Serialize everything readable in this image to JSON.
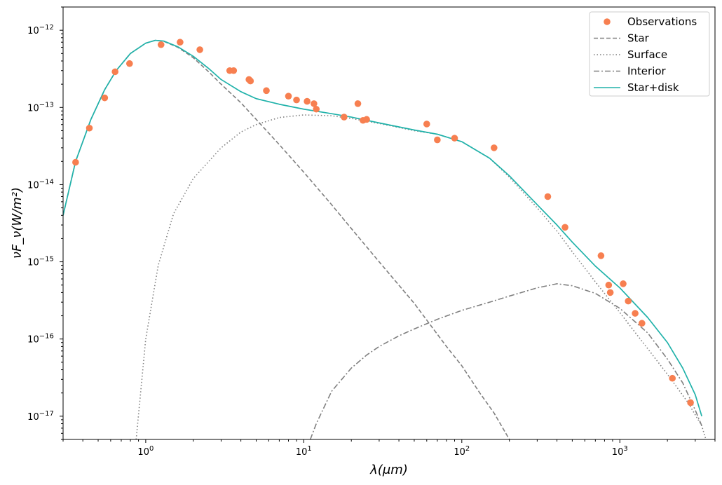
{
  "chart_data": {
    "type": "scatter",
    "title": "",
    "xlabel": "λ(μm)",
    "ylabel": "νF_ν(W/m²)",
    "xscale": "log",
    "yscale": "log",
    "xlim": [
      0.3,
      4000
    ],
    "ylim": [
      5e-18,
      2e-12
    ],
    "legend_position": "top-right",
    "x_ticks": [
      {
        "value": 1,
        "base": "10",
        "exp": "0"
      },
      {
        "value": 10,
        "base": "10",
        "exp": "1"
      },
      {
        "value": 100,
        "base": "10",
        "exp": "2"
      },
      {
        "value": 1000,
        "base": "10",
        "exp": "3"
      }
    ],
    "y_ticks": [
      {
        "value": 1e-17,
        "base": "10",
        "exp": "−17"
      },
      {
        "value": 1e-16,
        "base": "10",
        "exp": "−16"
      },
      {
        "value": 1e-15,
        "base": "10",
        "exp": "−15"
      },
      {
        "value": 1e-14,
        "base": "10",
        "exp": "−14"
      },
      {
        "value": 1e-13,
        "base": "10",
        "exp": "−13"
      },
      {
        "value": 1e-12,
        "base": "10",
        "exp": "−12"
      }
    ],
    "series": [
      {
        "name": "Observations",
        "kind": "scatter",
        "color": "#f77f50",
        "points": [
          [
            0.36,
            1.95e-14
          ],
          [
            0.44,
            5.4e-14
          ],
          [
            0.55,
            1.33e-13
          ],
          [
            0.64,
            2.9e-13
          ],
          [
            0.79,
            3.7e-13
          ],
          [
            1.25,
            6.5e-13
          ],
          [
            1.65,
            7e-13
          ],
          [
            2.2,
            5.6e-13
          ],
          [
            3.4,
            3e-13
          ],
          [
            3.6,
            3e-13
          ],
          [
            4.5,
            2.3e-13
          ],
          [
            4.6,
            2.2e-13
          ],
          [
            5.8,
            1.65e-13
          ],
          [
            8.0,
            1.4e-13
          ],
          [
            9.0,
            1.25e-13
          ],
          [
            10.5,
            1.2e-13
          ],
          [
            11.6,
            1.12e-13
          ],
          [
            12.0,
            9.5e-14
          ],
          [
            18,
            7.5e-14
          ],
          [
            22,
            1.12e-13
          ],
          [
            23.7,
            6.8e-14
          ],
          [
            25,
            7e-14
          ],
          [
            60,
            6.1e-14
          ],
          [
            70,
            3.8e-14
          ],
          [
            90,
            4e-14
          ],
          [
            160,
            3e-14
          ],
          [
            350,
            7e-15
          ],
          [
            450,
            2.8e-15
          ],
          [
            760,
            1.2e-15
          ],
          [
            850,
            5e-16
          ],
          [
            870,
            4e-16
          ],
          [
            1050,
            5.2e-16
          ],
          [
            1130,
            3.1e-16
          ],
          [
            1250,
            2.15e-16
          ],
          [
            1380,
            1.6e-16
          ],
          [
            2150,
            3.1e-17
          ],
          [
            2800,
            1.5e-17
          ]
        ]
      },
      {
        "name": "Star",
        "kind": "line",
        "dash": "dashed",
        "color": "#808080",
        "points": [
          [
            0.3,
            4e-15
          ],
          [
            0.36,
            2e-14
          ],
          [
            0.45,
            7e-14
          ],
          [
            0.55,
            1.7e-13
          ],
          [
            0.65,
            3e-13
          ],
          [
            0.8,
            5e-13
          ],
          [
            1.0,
            6.8e-13
          ],
          [
            1.15,
            7.4e-13
          ],
          [
            1.3,
            7.2e-13
          ],
          [
            1.6,
            6e-13
          ],
          [
            2.0,
            4.4e-13
          ],
          [
            2.5,
            2.9e-13
          ],
          [
            3.0,
            2e-13
          ],
          [
            4.0,
            1.15e-13
          ],
          [
            5.0,
            7e-14
          ],
          [
            7.0,
            3.3e-14
          ],
          [
            10,
            1.45e-14
          ],
          [
            15,
            5.5e-15
          ],
          [
            20,
            2.7e-15
          ],
          [
            30,
            1e-15
          ],
          [
            50,
            2.9e-16
          ],
          [
            80,
            8e-17
          ],
          [
            100,
            4.5e-17
          ],
          [
            130,
            2e-17
          ],
          [
            160,
            1.1e-17
          ],
          [
            200,
            5e-18
          ]
        ]
      },
      {
        "name": "Surface",
        "kind": "line",
        "dash": "dotted",
        "color": "#808080",
        "points": [
          [
            0.87,
            5e-18
          ],
          [
            1.0,
            1e-16
          ],
          [
            1.2,
            9e-16
          ],
          [
            1.5,
            4.2e-15
          ],
          [
            2.0,
            1.2e-14
          ],
          [
            3.0,
            3e-14
          ],
          [
            4.0,
            4.8e-14
          ],
          [
            5.0,
            6e-14
          ],
          [
            7.0,
            7.4e-14
          ],
          [
            10,
            8e-14
          ],
          [
            15,
            7.8e-14
          ],
          [
            20,
            7.2e-14
          ],
          [
            30,
            6.2e-14
          ],
          [
            50,
            5e-14
          ],
          [
            70,
            4.5e-14
          ],
          [
            100,
            3.6e-14
          ],
          [
            150,
            2.2e-14
          ],
          [
            200,
            1.25e-14
          ],
          [
            300,
            5e-15
          ],
          [
            400,
            2.5e-15
          ],
          [
            500,
            1.35e-15
          ],
          [
            700,
            5.5e-16
          ],
          [
            1000,
            2.2e-16
          ],
          [
            1500,
            7.5e-17
          ],
          [
            2000,
            3.5e-17
          ],
          [
            2700,
            1.5e-17
          ],
          [
            3300,
            7.5e-18
          ],
          [
            3500,
            5e-18
          ]
        ]
      },
      {
        "name": "Interior",
        "kind": "line",
        "dash": "dashdot",
        "color": "#808080",
        "points": [
          [
            11,
            5e-18
          ],
          [
            12,
            8e-18
          ],
          [
            15,
            2.1e-17
          ],
          [
            20,
            4.2e-17
          ],
          [
            25,
            6.2e-17
          ],
          [
            30,
            8e-17
          ],
          [
            40,
            1.1e-16
          ],
          [
            50,
            1.35e-16
          ],
          [
            70,
            1.8e-16
          ],
          [
            100,
            2.35e-16
          ],
          [
            150,
            3e-16
          ],
          [
            200,
            3.6e-16
          ],
          [
            300,
            4.6e-16
          ],
          [
            400,
            5.2e-16
          ],
          [
            500,
            4.9e-16
          ],
          [
            700,
            3.9e-16
          ],
          [
            1000,
            2.5e-16
          ],
          [
            1500,
            1.2e-16
          ],
          [
            2000,
            5.5e-17
          ],
          [
            2500,
            2.7e-17
          ],
          [
            3000,
            1.2e-17
          ],
          [
            3300,
            7.5e-18
          ]
        ]
      },
      {
        "name": "Star+disk",
        "kind": "line",
        "dash": "solid",
        "color": "#20b2aa",
        "points": [
          [
            0.3,
            4e-15
          ],
          [
            0.36,
            2e-14
          ],
          [
            0.45,
            7e-14
          ],
          [
            0.55,
            1.7e-13
          ],
          [
            0.65,
            3e-13
          ],
          [
            0.8,
            5e-13
          ],
          [
            1.0,
            6.8e-13
          ],
          [
            1.15,
            7.4e-13
          ],
          [
            1.3,
            7.25e-13
          ],
          [
            1.6,
            6.1e-13
          ],
          [
            2.0,
            4.6e-13
          ],
          [
            2.5,
            3.2e-13
          ],
          [
            3.0,
            2.3e-13
          ],
          [
            4.0,
            1.6e-13
          ],
          [
            5.0,
            1.3e-13
          ],
          [
            7.0,
            1.1e-13
          ],
          [
            10,
            9.5e-14
          ],
          [
            15,
            8.3e-14
          ],
          [
            20,
            7.5e-14
          ],
          [
            30,
            6.3e-14
          ],
          [
            50,
            5.1e-14
          ],
          [
            70,
            4.5e-14
          ],
          [
            100,
            3.6e-14
          ],
          [
            150,
            2.2e-14
          ],
          [
            200,
            1.3e-14
          ],
          [
            300,
            5.5e-15
          ],
          [
            400,
            3e-15
          ],
          [
            500,
            1.8e-15
          ],
          [
            700,
            8.8e-16
          ],
          [
            1000,
            4.6e-16
          ],
          [
            1500,
            1.9e-16
          ],
          [
            2000,
            9e-17
          ],
          [
            2500,
            4.2e-17
          ],
          [
            3000,
            1.9e-17
          ],
          [
            3300,
            1e-17
          ]
        ]
      }
    ]
  }
}
